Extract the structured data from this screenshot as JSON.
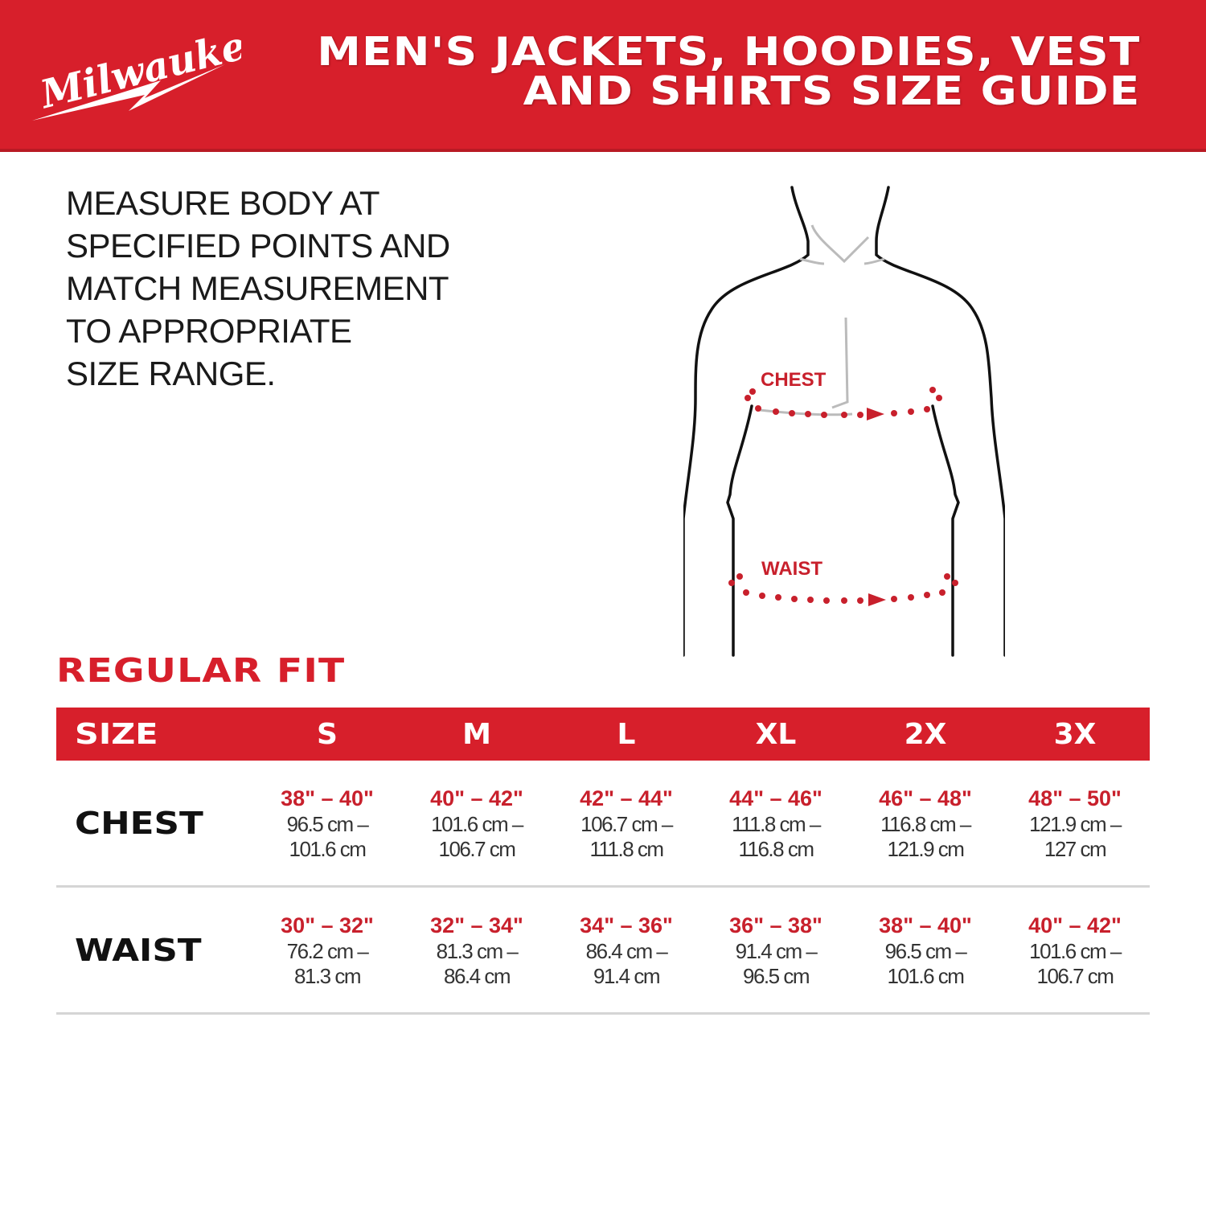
{
  "brand": {
    "logo_text": "Milwaukee",
    "color": "#d71f2b"
  },
  "header": {
    "title_line1": "MEN'S JACKETS, HOODIES, VEST",
    "title_line2": "AND SHIRTS SIZE GUIDE"
  },
  "instructions": [
    "MEASURE BODY AT",
    "SPECIFIED POINTS AND",
    "MATCH MEASUREMENT",
    "TO APPROPRIATE",
    "SIZE RANGE."
  ],
  "figure": {
    "chest_label": "CHEST",
    "waist_label": "WAIST"
  },
  "fit_title": "REGULAR FIT",
  "table": {
    "header_label": "SIZE",
    "sizes": [
      "S",
      "M",
      "L",
      "XL",
      "2X",
      "3X"
    ],
    "rows": [
      {
        "label": "CHEST",
        "cells": [
          {
            "in": "38\" – 40\"",
            "cm1": "96.5 cm –",
            "cm2": "101.6 cm"
          },
          {
            "in": "40\" – 42\"",
            "cm1": "101.6 cm –",
            "cm2": "106.7 cm"
          },
          {
            "in": "42\" – 44\"",
            "cm1": "106.7 cm –",
            "cm2": "111.8 cm"
          },
          {
            "in": "44\" – 46\"",
            "cm1": "111.8 cm –",
            "cm2": "116.8 cm"
          },
          {
            "in": "46\" – 48\"",
            "cm1": "116.8 cm –",
            "cm2": "121.9 cm"
          },
          {
            "in": "48\" – 50\"",
            "cm1": "121.9 cm –",
            "cm2": "127 cm"
          }
        ]
      },
      {
        "label": "WAIST",
        "cells": [
          {
            "in": "30\" – 32\"",
            "cm1": "76.2 cm –",
            "cm2": "81.3 cm"
          },
          {
            "in": "32\" – 34\"",
            "cm1": "81.3 cm –",
            "cm2": "86.4 cm"
          },
          {
            "in": "34\" – 36\"",
            "cm1": "86.4 cm –",
            "cm2": "91.4 cm"
          },
          {
            "in": "36\" – 38\"",
            "cm1": "91.4 cm –",
            "cm2": "96.5 cm"
          },
          {
            "in": "38\" – 40\"",
            "cm1": "96.5 cm –",
            "cm2": "101.6 cm"
          },
          {
            "in": "40\" – 42\"",
            "cm1": "101.6 cm –",
            "cm2": "106.7 cm"
          }
        ]
      }
    ]
  }
}
